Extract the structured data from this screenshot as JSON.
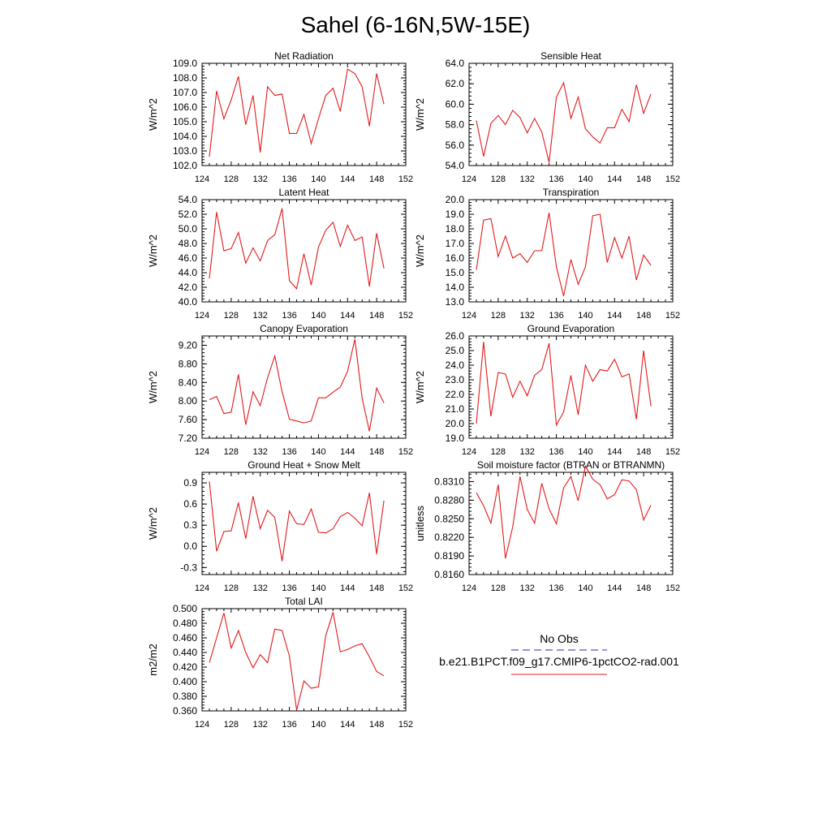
{
  "figure": {
    "title": "Sahel (6-16N,5W-15E)"
  },
  "legend": {
    "entries": [
      {
        "label": "No Obs",
        "color": "#2a2aa8",
        "dash": "dashed"
      },
      {
        "label": "b.e21.B1PCT.f09_g17.CMIP6-1pctCO2-rad.001",
        "color": "#e31a1c",
        "dash": "solid"
      }
    ]
  },
  "chart_data": [
    {
      "type": "line",
      "title": "Net Radiation",
      "ylabel": "W/m^2",
      "xlim": [
        124,
        152
      ],
      "ylim": [
        102.0,
        109.0
      ],
      "xticks": [
        124,
        128,
        132,
        136,
        140,
        144,
        148,
        152
      ],
      "yticks": [
        "102.0",
        "103.0",
        "104.0",
        "105.0",
        "106.0",
        "107.0",
        "108.0",
        "109.0"
      ],
      "ytick_values": [
        102,
        103,
        104,
        105,
        106,
        107,
        108,
        109
      ],
      "color": "#e31a1c",
      "x": [
        125,
        126,
        127,
        128,
        129,
        130,
        131,
        132,
        133,
        134,
        135,
        136,
        137,
        138,
        139,
        140,
        141,
        142,
        143,
        144,
        145,
        146,
        147,
        148,
        149
      ],
      "y": [
        102.6,
        107.1,
        105.2,
        106.5,
        108.1,
        104.8,
        106.8,
        102.9,
        107.4,
        106.8,
        106.9,
        104.2,
        104.2,
        105.5,
        103.5,
        105.2,
        106.8,
        107.3,
        105.7,
        108.6,
        108.3,
        107.4,
        104.7,
        108.3,
        106.2
      ]
    },
    {
      "type": "line",
      "title": "Sensible Heat",
      "ylabel": "W/m^2",
      "xlim": [
        124,
        152
      ],
      "ylim": [
        54.0,
        64.0
      ],
      "xticks": [
        124,
        128,
        132,
        136,
        140,
        144,
        148,
        152
      ],
      "yticks": [
        "54.0",
        "56.0",
        "58.0",
        "60.0",
        "62.0",
        "64.0"
      ],
      "ytick_values": [
        54,
        56,
        58,
        60,
        62,
        64
      ],
      "color": "#e31a1c",
      "x": [
        125,
        126,
        127,
        128,
        129,
        130,
        131,
        132,
        133,
        134,
        135,
        136,
        137,
        138,
        139,
        140,
        141,
        142,
        143,
        144,
        145,
        146,
        147,
        148,
        149
      ],
      "y": [
        58.4,
        54.9,
        58.1,
        58.9,
        58.0,
        59.4,
        58.7,
        57.2,
        58.6,
        57.3,
        54.3,
        60.7,
        62.1,
        58.6,
        60.7,
        57.6,
        56.8,
        56.2,
        57.7,
        57.7,
        59.5,
        58.3,
        61.9,
        59.1,
        61.0
      ]
    },
    {
      "type": "line",
      "title": "Latent Heat",
      "ylabel": "W/m^2",
      "xlim": [
        124,
        152
      ],
      "ylim": [
        40.0,
        54.0
      ],
      "xticks": [
        124,
        128,
        132,
        136,
        140,
        144,
        148,
        152
      ],
      "yticks": [
        "40.0",
        "42.0",
        "44.0",
        "46.0",
        "48.0",
        "50.0",
        "52.0",
        "54.0"
      ],
      "ytick_values": [
        40,
        42,
        44,
        46,
        48,
        50,
        52,
        54
      ],
      "color": "#e31a1c",
      "x": [
        125,
        126,
        127,
        128,
        129,
        130,
        131,
        132,
        133,
        134,
        135,
        136,
        137,
        138,
        139,
        140,
        141,
        142,
        143,
        144,
        145,
        146,
        147,
        148,
        149
      ],
      "y": [
        43.2,
        52.3,
        47.0,
        47.3,
        49.5,
        45.3,
        47.4,
        45.6,
        48.4,
        49.2,
        52.8,
        42.9,
        41.8,
        46.6,
        42.3,
        47.5,
        49.8,
        50.9,
        47.6,
        50.5,
        48.4,
        48.9,
        42.1,
        49.4,
        44.6
      ]
    },
    {
      "type": "line",
      "title": "Transpiration",
      "ylabel": "W/m^2",
      "xlim": [
        124,
        152
      ],
      "ylim": [
        13.0,
        20.0
      ],
      "xticks": [
        124,
        128,
        132,
        136,
        140,
        144,
        148,
        152
      ],
      "yticks": [
        "13.0",
        "14.0",
        "15.0",
        "16.0",
        "17.0",
        "18.0",
        "19.0",
        "20.0"
      ],
      "ytick_values": [
        13,
        14,
        15,
        16,
        17,
        18,
        19,
        20
      ],
      "color": "#e31a1c",
      "x": [
        125,
        126,
        127,
        128,
        129,
        130,
        131,
        132,
        133,
        134,
        135,
        136,
        137,
        138,
        139,
        140,
        141,
        142,
        143,
        144,
        145,
        146,
        147,
        148,
        149
      ],
      "y": [
        15.2,
        18.6,
        18.7,
        16.1,
        17.5,
        16.0,
        16.3,
        15.7,
        16.5,
        16.5,
        19.1,
        15.4,
        13.4,
        15.9,
        14.2,
        15.4,
        18.9,
        19.0,
        15.7,
        17.4,
        16.0,
        17.5,
        14.5,
        16.2,
        15.5
      ]
    },
    {
      "type": "line",
      "title": "Canopy Evaporation",
      "ylabel": "W/m^2",
      "xlim": [
        124,
        152
      ],
      "ylim": [
        7.2,
        9.4
      ],
      "xticks": [
        124,
        128,
        132,
        136,
        140,
        144,
        148,
        152
      ],
      "yticks": [
        "7.20",
        "7.60",
        "8.00",
        "8.40",
        "8.80",
        "9.20"
      ],
      "ytick_values": [
        7.2,
        7.6,
        8.0,
        8.4,
        8.8,
        9.2
      ],
      "color": "#e31a1c",
      "x": [
        125,
        126,
        127,
        128,
        129,
        130,
        131,
        132,
        133,
        134,
        135,
        136,
        137,
        138,
        139,
        140,
        141,
        142,
        143,
        144,
        145,
        146,
        147,
        148,
        149
      ],
      "y": [
        8.03,
        8.1,
        7.73,
        7.76,
        8.57,
        7.49,
        8.2,
        7.9,
        8.5,
        8.97,
        8.2,
        7.61,
        7.57,
        7.53,
        7.57,
        8.07,
        8.07,
        8.19,
        8.3,
        8.64,
        9.33,
        8.06,
        7.35,
        8.28,
        7.96
      ]
    },
    {
      "type": "line",
      "title": "Ground Evaporation",
      "ylabel": "W/m^2",
      "xlim": [
        124,
        152
      ],
      "ylim": [
        19.0,
        26.0
      ],
      "xticks": [
        124,
        128,
        132,
        136,
        140,
        144,
        148,
        152
      ],
      "yticks": [
        "19.0",
        "20.0",
        "21.0",
        "22.0",
        "23.0",
        "24.0",
        "25.0",
        "26.0"
      ],
      "ytick_values": [
        19,
        20,
        21,
        22,
        23,
        24,
        25,
        26
      ],
      "color": "#e31a1c",
      "x": [
        125,
        126,
        127,
        128,
        129,
        130,
        131,
        132,
        133,
        134,
        135,
        136,
        137,
        138,
        139,
        140,
        141,
        142,
        143,
        144,
        145,
        146,
        147,
        148,
        149
      ],
      "y": [
        20.0,
        25.6,
        20.5,
        23.5,
        23.4,
        21.8,
        22.9,
        21.9,
        23.3,
        23.7,
        25.5,
        19.9,
        20.8,
        23.3,
        20.6,
        24.0,
        22.9,
        23.7,
        23.6,
        24.4,
        23.2,
        23.4,
        20.3,
        25.0,
        21.2
      ]
    },
    {
      "type": "line",
      "title": "Ground Heat + Snow Melt",
      "ylabel": "W/m^2",
      "xlim": [
        124,
        152
      ],
      "ylim": [
        -0.4,
        1.05
      ],
      "xticks": [
        124,
        128,
        132,
        136,
        140,
        144,
        148,
        152
      ],
      "yticks": [
        "-0.3",
        "0.0",
        "0.3",
        "0.6",
        "0.9"
      ],
      "ytick_values": [
        -0.3,
        0.0,
        0.3,
        0.6,
        0.9
      ],
      "color": "#e31a1c",
      "x": [
        125,
        126,
        127,
        128,
        129,
        130,
        131,
        132,
        133,
        134,
        135,
        136,
        137,
        138,
        139,
        140,
        141,
        142,
        143,
        144,
        145,
        146,
        147,
        148,
        149
      ],
      "y": [
        0.92,
        -0.07,
        0.21,
        0.22,
        0.62,
        0.11,
        0.71,
        0.25,
        0.51,
        0.41,
        -0.21,
        0.5,
        0.32,
        0.31,
        0.53,
        0.2,
        0.19,
        0.25,
        0.42,
        0.48,
        0.4,
        0.29,
        0.76,
        -0.11,
        0.65
      ]
    },
    {
      "type": "line",
      "title": "Soil moisture factor (BTRAN or BTRANMN)",
      "ylabel": "unitless",
      "xlim": [
        124,
        152
      ],
      "ylim": [
        0.816,
        0.8325
      ],
      "xticks": [
        124,
        128,
        132,
        136,
        140,
        144,
        148,
        152
      ],
      "yticks": [
        "0.8160",
        "0.8190",
        "0.8220",
        "0.8250",
        "0.8280",
        "0.8310"
      ],
      "ytick_values": [
        0.816,
        0.819,
        0.822,
        0.825,
        0.828,
        0.831
      ],
      "color": "#e31a1c",
      "x": [
        125,
        126,
        127,
        128,
        129,
        130,
        131,
        132,
        133,
        134,
        135,
        136,
        137,
        138,
        139,
        140,
        141,
        142,
        143,
        144,
        145,
        146,
        147,
        148,
        149
      ],
      "y": [
        0.8292,
        0.8271,
        0.8243,
        0.8305,
        0.8186,
        0.8237,
        0.8318,
        0.8265,
        0.8243,
        0.8307,
        0.8266,
        0.8242,
        0.83,
        0.8318,
        0.8279,
        0.8335,
        0.8314,
        0.8305,
        0.8282,
        0.8289,
        0.8313,
        0.8311,
        0.8297,
        0.8248,
        0.8272
      ]
    },
    {
      "type": "line",
      "title": "Total LAI",
      "ylabel": "m2/m2",
      "xlim": [
        124,
        152
      ],
      "ylim": [
        0.36,
        0.5
      ],
      "xticks": [
        124,
        128,
        132,
        136,
        140,
        144,
        148,
        152
      ],
      "yticks": [
        "0.360",
        "0.380",
        "0.400",
        "0.420",
        "0.440",
        "0.460",
        "0.480",
        "0.500"
      ],
      "ytick_values": [
        0.36,
        0.38,
        0.4,
        0.42,
        0.44,
        0.46,
        0.48,
        0.5
      ],
      "color": "#e31a1c",
      "x": [
        125,
        126,
        127,
        128,
        129,
        130,
        131,
        132,
        133,
        134,
        135,
        136,
        137,
        138,
        139,
        140,
        141,
        142,
        143,
        144,
        145,
        146,
        147,
        148,
        149
      ],
      "y": [
        0.426,
        0.46,
        0.494,
        0.446,
        0.47,
        0.44,
        0.419,
        0.437,
        0.426,
        0.472,
        0.47,
        0.435,
        0.361,
        0.401,
        0.391,
        0.393,
        0.463,
        0.495,
        0.441,
        0.444,
        0.449,
        0.452,
        0.434,
        0.414,
        0.408
      ]
    }
  ]
}
